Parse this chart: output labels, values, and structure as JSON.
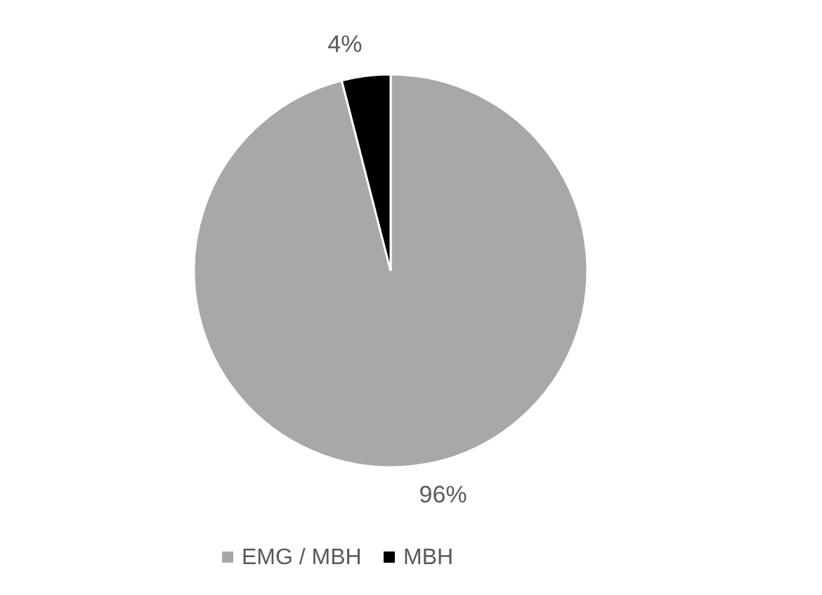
{
  "chart_data": {
    "type": "pie",
    "categories": [
      "EMG / MBH",
      "MBH"
    ],
    "values": [
      96,
      4
    ],
    "colors": [
      "#aaa7a7",
      "#000000"
    ],
    "value_labels": [
      "96%",
      "4%"
    ],
    "legend": "bottom"
  }
}
